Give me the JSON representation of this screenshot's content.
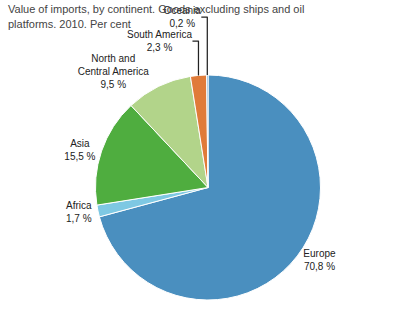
{
  "chart_data": {
    "type": "pie",
    "title": "Value of imports, by continent. Goods excluding ships and oil\nplatforms. 2010. Per cent",
    "categories": [
      "Europe",
      "Africa",
      "Asia",
      "North and\nCentral America",
      "South America",
      "Oceania"
    ],
    "values": [
      70.8,
      1.7,
      15.5,
      9.5,
      2.3,
      0.2
    ],
    "value_labels": [
      "70,8 %",
      "1,7 %",
      "15,5 %",
      "9,5 %",
      "2,3 %",
      "0,2 %"
    ],
    "colors": [
      "#4a8fbf",
      "#7ec8e3",
      "#4fad3f",
      "#b2d48a",
      "#e07b39",
      "#4a8fbf"
    ]
  }
}
